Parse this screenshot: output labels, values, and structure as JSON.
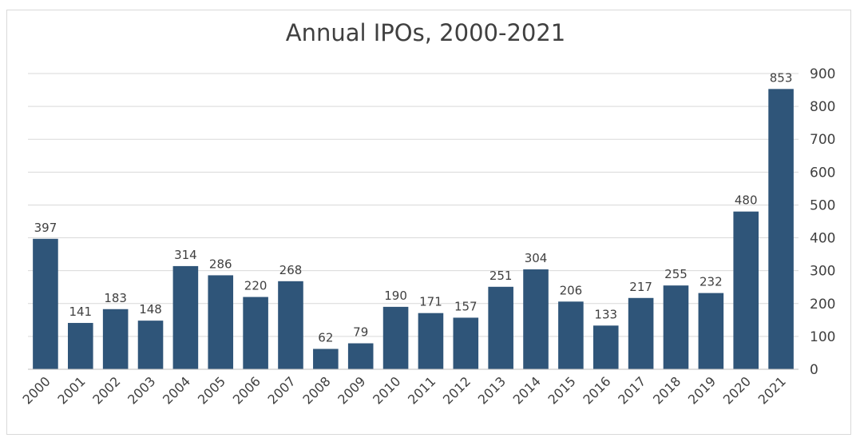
{
  "chart_data": {
    "type": "bar",
    "title": "Annual IPOs, 2000-2021",
    "xlabel": "",
    "ylabel": "",
    "categories": [
      "2000",
      "2001",
      "2002",
      "2003",
      "2004",
      "2005",
      "2006",
      "2007",
      "2008",
      "2009",
      "2010",
      "2011",
      "2012",
      "2013",
      "2014",
      "2015",
      "2016",
      "2017",
      "2018",
      "2019",
      "2020",
      "2021"
    ],
    "values": [
      397,
      141,
      183,
      148,
      314,
      286,
      220,
      268,
      62,
      79,
      190,
      171,
      157,
      251,
      304,
      206,
      133,
      217,
      255,
      232,
      480,
      853
    ],
    "ylim": [
      0,
      900
    ],
    "yticks": [
      0,
      100,
      200,
      300,
      400,
      500,
      600,
      700,
      800,
      900
    ],
    "y_axis_side": "right",
    "grid": true,
    "data_labels": true,
    "bar_color": "#2f5579"
  }
}
